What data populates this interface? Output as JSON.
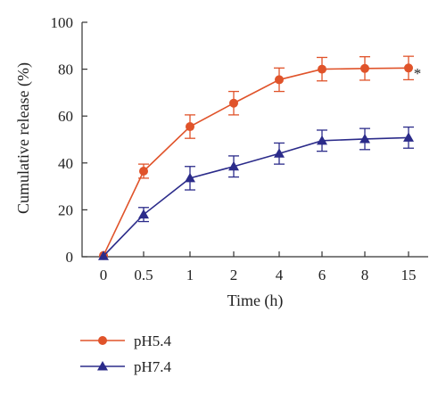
{
  "chart_data": {
    "type": "line",
    "xlabel": "Time (h)",
    "ylabel": "Cumulative release (%)",
    "categories": [
      "0",
      "0.5",
      "1",
      "2",
      "4",
      "6",
      "8",
      "15"
    ],
    "ylim": [
      0,
      100
    ],
    "yticks": [
      "0",
      "20",
      "40",
      "60",
      "80",
      "100"
    ],
    "grid": false,
    "legend_position": "bottom-left",
    "annotation": "*",
    "series": [
      {
        "name": "pH5.4",
        "color": "#e0532a",
        "marker": "circle",
        "values": [
          0.5,
          36.5,
          55.5,
          65.5,
          75.5,
          80,
          80.3,
          80.5
        ],
        "errors": [
          0.5,
          3.0,
          5.0,
          5.0,
          5.0,
          5.0,
          5.0,
          5.0
        ]
      },
      {
        "name": "pH7.4",
        "color": "#2b2b8a",
        "marker": "triangle",
        "values": [
          0.3,
          18,
          33.5,
          38.5,
          44,
          49.5,
          50.2,
          50.8
        ],
        "errors": [
          0.5,
          3.0,
          5.0,
          4.5,
          4.5,
          4.5,
          4.5,
          4.5
        ]
      }
    ]
  }
}
